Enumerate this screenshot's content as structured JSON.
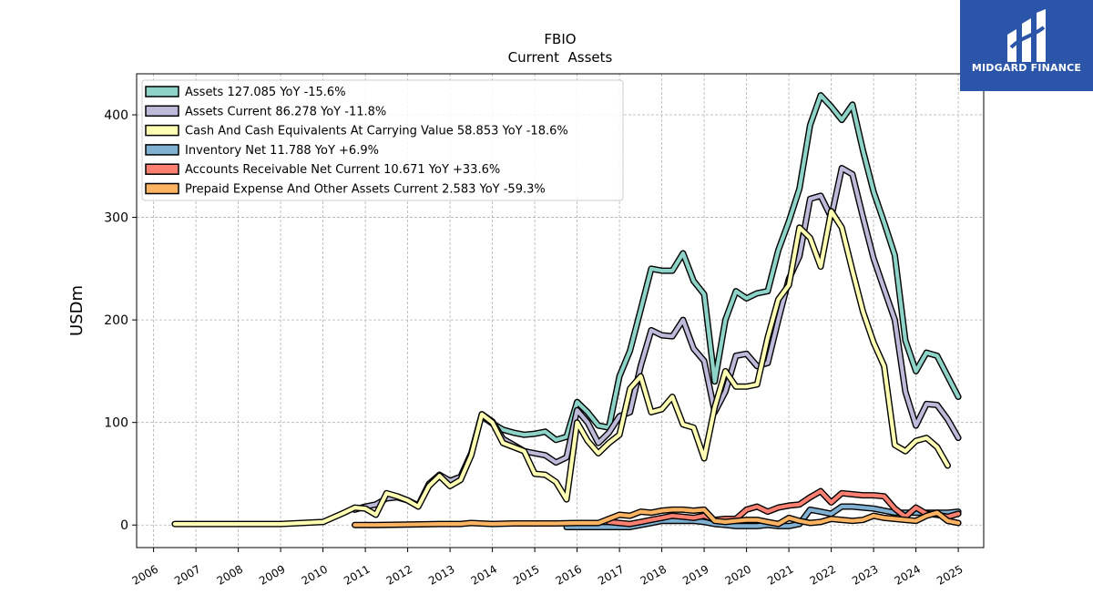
{
  "brand": {
    "name": "MIDGARD FINANCE",
    "bg_color": "#2a55a8"
  },
  "chart_data": {
    "type": "line",
    "title": "FBIO",
    "subtitle": "Current  Assets",
    "ylabel": "USDm",
    "xlabel": "",
    "xlim": [
      2005.6,
      2025.6
    ],
    "ylim": [
      -22,
      440
    ],
    "yticks": [
      0,
      100,
      200,
      300,
      400
    ],
    "xticks": [
      2006,
      2007,
      2008,
      2009,
      2010,
      2011,
      2012,
      2013,
      2014,
      2015,
      2016,
      2017,
      2018,
      2019,
      2020,
      2021,
      2022,
      2023,
      2024,
      2025
    ],
    "grid": true,
    "legend_position": "upper-left",
    "series": [
      {
        "name": "Assets  127.085 YoY -15.6%",
        "color": "#8dd3c7",
        "points": [
          [
            2013.75,
            106
          ],
          [
            2014.0,
            99
          ],
          [
            2014.25,
            93
          ],
          [
            2014.5,
            90
          ],
          [
            2014.75,
            88
          ],
          [
            2015.0,
            89
          ],
          [
            2015.25,
            91
          ],
          [
            2015.5,
            83
          ],
          [
            2015.75,
            86
          ],
          [
            2016.0,
            120
          ],
          [
            2016.25,
            110
          ],
          [
            2016.5,
            97
          ],
          [
            2016.75,
            95
          ],
          [
            2017.0,
            145
          ],
          [
            2017.25,
            170
          ],
          [
            2017.5,
            210
          ],
          [
            2017.75,
            250
          ],
          [
            2018.0,
            248
          ],
          [
            2018.25,
            248
          ],
          [
            2018.5,
            265
          ],
          [
            2018.75,
            238
          ],
          [
            2019.0,
            225
          ],
          [
            2019.25,
            140
          ],
          [
            2019.5,
            200
          ],
          [
            2019.75,
            228
          ],
          [
            2020.0,
            221
          ],
          [
            2020.25,
            226
          ],
          [
            2020.5,
            228
          ],
          [
            2020.75,
            268
          ],
          [
            2021.0,
            296
          ],
          [
            2021.25,
            328
          ],
          [
            2021.5,
            390
          ],
          [
            2021.75,
            419
          ],
          [
            2022.0,
            408
          ],
          [
            2022.25,
            395
          ],
          [
            2022.5,
            410
          ],
          [
            2022.75,
            365
          ],
          [
            2023.0,
            325
          ],
          [
            2023.25,
            295
          ],
          [
            2023.5,
            263
          ],
          [
            2023.75,
            180
          ],
          [
            2024.0,
            150
          ],
          [
            2024.25,
            168
          ],
          [
            2024.5,
            165
          ],
          [
            2024.75,
            145
          ],
          [
            2025.0,
            125
          ]
        ]
      },
      {
        "name": "Assets Current  86.278 YoY -11.8%",
        "color": "#bebada",
        "points": [
          [
            2010.75,
            15
          ],
          [
            2011.0,
            18
          ],
          [
            2011.25,
            20
          ],
          [
            2011.5,
            26
          ],
          [
            2011.75,
            27
          ],
          [
            2012.0,
            24
          ],
          [
            2012.25,
            19
          ],
          [
            2012.5,
            40
          ],
          [
            2012.75,
            49
          ],
          [
            2013.0,
            43
          ],
          [
            2013.25,
            47
          ],
          [
            2013.5,
            70
          ],
          [
            2013.75,
            108
          ],
          [
            2014.0,
            101
          ],
          [
            2014.25,
            84
          ],
          [
            2014.5,
            78
          ],
          [
            2014.75,
            72
          ],
          [
            2015.0,
            70
          ],
          [
            2015.25,
            68
          ],
          [
            2015.5,
            61
          ],
          [
            2015.75,
            66
          ],
          [
            2016.0,
            112
          ],
          [
            2016.25,
            100
          ],
          [
            2016.5,
            80
          ],
          [
            2016.75,
            90
          ],
          [
            2017.0,
            106
          ],
          [
            2017.25,
            110
          ],
          [
            2017.5,
            155
          ],
          [
            2017.75,
            190
          ],
          [
            2018.0,
            185
          ],
          [
            2018.25,
            184
          ],
          [
            2018.5,
            200
          ],
          [
            2018.75,
            172
          ],
          [
            2019.0,
            160
          ],
          [
            2019.25,
            110
          ],
          [
            2019.5,
            130
          ],
          [
            2019.75,
            165
          ],
          [
            2020.0,
            167
          ],
          [
            2020.25,
            155
          ],
          [
            2020.5,
            158
          ],
          [
            2020.75,
            200
          ],
          [
            2021.0,
            240
          ],
          [
            2021.25,
            262
          ],
          [
            2021.5,
            318
          ],
          [
            2021.75,
            321
          ],
          [
            2022.0,
            300
          ],
          [
            2022.25,
            348
          ],
          [
            2022.5,
            342
          ],
          [
            2022.75,
            300
          ],
          [
            2023.0,
            260
          ],
          [
            2023.25,
            230
          ],
          [
            2023.5,
            200
          ],
          [
            2023.75,
            130
          ],
          [
            2024.0,
            97
          ],
          [
            2024.25,
            118
          ],
          [
            2024.5,
            117
          ],
          [
            2024.75,
            103
          ],
          [
            2025.0,
            85
          ]
        ]
      },
      {
        "name": "Cash And Cash Equivalents At Carrying Value  58.853 YoY -18.6%",
        "color": "#ffffb3",
        "points": [
          [
            2006.5,
            1
          ],
          [
            2007.0,
            1
          ],
          [
            2008.0,
            1
          ],
          [
            2009.0,
            1
          ],
          [
            2010.0,
            3
          ],
          [
            2010.5,
            12
          ],
          [
            2010.75,
            17
          ],
          [
            2011.0,
            16
          ],
          [
            2011.25,
            10
          ],
          [
            2011.5,
            31
          ],
          [
            2011.75,
            28
          ],
          [
            2012.0,
            24
          ],
          [
            2012.25,
            18
          ],
          [
            2012.5,
            38
          ],
          [
            2012.75,
            48
          ],
          [
            2013.0,
            38
          ],
          [
            2013.25,
            44
          ],
          [
            2013.5,
            68
          ],
          [
            2013.75,
            108
          ],
          [
            2014.0,
            100
          ],
          [
            2014.25,
            80
          ],
          [
            2014.5,
            76
          ],
          [
            2014.75,
            72
          ],
          [
            2015.0,
            50
          ],
          [
            2015.25,
            49
          ],
          [
            2015.5,
            42
          ],
          [
            2015.75,
            25
          ],
          [
            2016.0,
            100
          ],
          [
            2016.25,
            82
          ],
          [
            2016.5,
            70
          ],
          [
            2016.75,
            80
          ],
          [
            2017.0,
            88
          ],
          [
            2017.25,
            133
          ],
          [
            2017.5,
            145
          ],
          [
            2017.75,
            110
          ],
          [
            2018.0,
            113
          ],
          [
            2018.25,
            125
          ],
          [
            2018.5,
            98
          ],
          [
            2018.75,
            95
          ],
          [
            2019.0,
            65
          ],
          [
            2019.25,
            115
          ],
          [
            2019.5,
            150
          ],
          [
            2019.75,
            135
          ],
          [
            2020.0,
            135
          ],
          [
            2020.25,
            137
          ],
          [
            2020.5,
            183
          ],
          [
            2020.75,
            220
          ],
          [
            2021.0,
            234
          ],
          [
            2021.25,
            290
          ],
          [
            2021.5,
            280
          ],
          [
            2021.75,
            252
          ],
          [
            2022.0,
            306
          ],
          [
            2022.25,
            290
          ],
          [
            2022.5,
            248
          ],
          [
            2022.75,
            208
          ],
          [
            2023.0,
            178
          ],
          [
            2023.25,
            155
          ],
          [
            2023.5,
            78
          ],
          [
            2023.75,
            72
          ],
          [
            2024.0,
            82
          ],
          [
            2024.25,
            85
          ],
          [
            2024.5,
            76
          ],
          [
            2024.75,
            58
          ]
        ]
      },
      {
        "name": "Inventory Net  11.788 YoY +6.9%",
        "color": "#80b1d3",
        "points": [
          [
            2015.75,
            -2
          ],
          [
            2016.25,
            -2
          ],
          [
            2016.75,
            -2
          ],
          [
            2017.0,
            -2
          ],
          [
            2017.25,
            -2
          ],
          [
            2017.5,
            0
          ],
          [
            2017.75,
            2
          ],
          [
            2018.0,
            4
          ],
          [
            2018.25,
            4
          ],
          [
            2018.5,
            4
          ],
          [
            2018.75,
            4
          ],
          [
            2019.0,
            3
          ],
          [
            2019.25,
            1
          ],
          [
            2019.5,
            0
          ],
          [
            2019.75,
            -1
          ],
          [
            2020.0,
            -1
          ],
          [
            2020.25,
            -1
          ],
          [
            2020.5,
            0
          ],
          [
            2020.75,
            -1
          ],
          [
            2021.0,
            -1
          ],
          [
            2021.25,
            1
          ],
          [
            2021.5,
            15
          ],
          [
            2021.75,
            13
          ],
          [
            2022.0,
            11
          ],
          [
            2022.25,
            18
          ],
          [
            2022.5,
            18
          ],
          [
            2022.75,
            17
          ],
          [
            2023.0,
            16
          ],
          [
            2023.25,
            14
          ],
          [
            2023.5,
            12
          ],
          [
            2023.75,
            12
          ],
          [
            2024.0,
            12
          ],
          [
            2024.25,
            12
          ],
          [
            2024.5,
            12
          ],
          [
            2024.75,
            12
          ],
          [
            2025.0,
            13
          ]
        ]
      },
      {
        "name": "Accounts Receivable Net Current  10.671 YoY +33.6%",
        "color": "#fb8072",
        "points": [
          [
            2016.75,
            3
          ],
          [
            2017.0,
            2
          ],
          [
            2017.25,
            1
          ],
          [
            2017.5,
            3
          ],
          [
            2017.75,
            5
          ],
          [
            2018.0,
            7
          ],
          [
            2018.25,
            9
          ],
          [
            2018.5,
            8
          ],
          [
            2018.75,
            7
          ],
          [
            2019.0,
            9
          ],
          [
            2019.25,
            5
          ],
          [
            2019.5,
            6
          ],
          [
            2019.75,
            6
          ],
          [
            2020.0,
            15
          ],
          [
            2020.25,
            18
          ],
          [
            2020.5,
            13
          ],
          [
            2020.75,
            17
          ],
          [
            2021.0,
            19
          ],
          [
            2021.25,
            20
          ],
          [
            2021.5,
            27
          ],
          [
            2021.75,
            33
          ],
          [
            2022.0,
            22
          ],
          [
            2022.25,
            31
          ],
          [
            2022.5,
            30
          ],
          [
            2022.75,
            29
          ],
          [
            2023.0,
            29
          ],
          [
            2023.25,
            28
          ],
          [
            2023.5,
            16
          ],
          [
            2023.75,
            8
          ],
          [
            2024.0,
            17
          ],
          [
            2024.25,
            11
          ],
          [
            2024.5,
            10
          ],
          [
            2024.75,
            8
          ],
          [
            2025.0,
            11
          ]
        ]
      },
      {
        "name": "Prepaid Expense And Other Assets Current  2.583 YoY -59.3%",
        "color": "#fdb462",
        "points": [
          [
            2010.75,
            0
          ],
          [
            2011.25,
            0
          ],
          [
            2012.0,
            0.5
          ],
          [
            2012.75,
            1
          ],
          [
            2013.25,
            1
          ],
          [
            2013.5,
            2
          ],
          [
            2014.0,
            1
          ],
          [
            2014.5,
            1.5
          ],
          [
            2015.0,
            1.5
          ],
          [
            2015.5,
            1.5
          ],
          [
            2016.0,
            2
          ],
          [
            2016.5,
            2
          ],
          [
            2016.75,
            6
          ],
          [
            2017.0,
            10
          ],
          [
            2017.25,
            9
          ],
          [
            2017.5,
            13
          ],
          [
            2017.75,
            12
          ],
          [
            2018.0,
            14
          ],
          [
            2018.25,
            15
          ],
          [
            2018.5,
            15
          ],
          [
            2018.75,
            14
          ],
          [
            2019.0,
            15
          ],
          [
            2019.25,
            4
          ],
          [
            2019.5,
            3
          ],
          [
            2019.75,
            4
          ],
          [
            2020.0,
            5
          ],
          [
            2020.25,
            5
          ],
          [
            2020.5,
            3
          ],
          [
            2020.75,
            1
          ],
          [
            2021.0,
            7
          ],
          [
            2021.25,
            4
          ],
          [
            2021.5,
            2
          ],
          [
            2021.75,
            3
          ],
          [
            2022.0,
            6
          ],
          [
            2022.25,
            5
          ],
          [
            2022.5,
            4
          ],
          [
            2022.75,
            5
          ],
          [
            2023.0,
            9
          ],
          [
            2023.25,
            7
          ],
          [
            2023.5,
            6
          ],
          [
            2023.75,
            5
          ],
          [
            2024.0,
            4
          ],
          [
            2024.25,
            9
          ],
          [
            2024.5,
            12
          ],
          [
            2024.75,
            4
          ],
          [
            2025.0,
            2
          ]
        ]
      }
    ]
  }
}
